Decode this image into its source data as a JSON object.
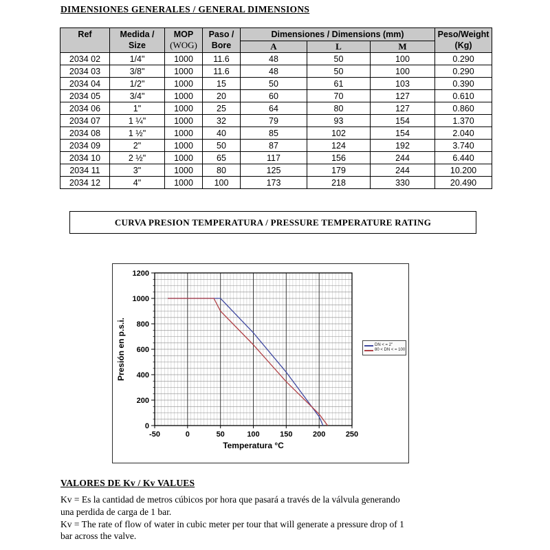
{
  "page": {
    "title": "DIMENSIONES GENERALES / GENERAL DIMENSIONS"
  },
  "table": {
    "headers": {
      "ref": "Ref",
      "size": "Medida  /\nSize",
      "mop_line1": "MOP",
      "mop_line2": "(WOG)",
      "bore": "Paso /\nBore",
      "dimensions": "Dimensiones / Dimensions (mm)",
      "dim_a": "A",
      "dim_l": "L",
      "dim_m": "M",
      "weight": "Peso/Weight\n(Kg)"
    },
    "rows": [
      [
        "2034 02",
        "1/4\"",
        "1000",
        "11.6",
        "48",
        "50",
        "100",
        "0.290"
      ],
      [
        "2034 03",
        "3/8\"",
        "1000",
        "11.6",
        "48",
        "50",
        "100",
        "0.290"
      ],
      [
        "2034 04",
        "1/2\"",
        "1000",
        "15",
        "50",
        "61",
        "103",
        "0.390"
      ],
      [
        "2034 05",
        "3/4\"",
        "1000",
        "20",
        "60",
        "70",
        "127",
        "0.610"
      ],
      [
        "2034 06",
        "1\"",
        "1000",
        "25",
        "64",
        "80",
        "127",
        "0.860"
      ],
      [
        "2034 07",
        "1 ¼\"",
        "1000",
        "32",
        "79",
        "93",
        "154",
        "1.370"
      ],
      [
        "2034 08",
        "1 ½\"",
        "1000",
        "40",
        "85",
        "102",
        "154",
        "2.040"
      ],
      [
        "2034 09",
        "2\"",
        "1000",
        "50",
        "87",
        "124",
        "192",
        "3.740"
      ],
      [
        "2034 10",
        "2 ½\"",
        "1000",
        "65",
        "117",
        "156",
        "244",
        "6.440"
      ],
      [
        "2034 11",
        "3\"",
        "1000",
        "80",
        "125",
        "179",
        "244",
        "10.200"
      ],
      [
        "2034 12",
        "4\"",
        "1000",
        "100",
        "173",
        "218",
        "330",
        "20.490"
      ]
    ]
  },
  "section_title": "CURVA PRESION TEMPERATURA / PRESSURE TEMPERATURE RATING",
  "chart_data": {
    "type": "line",
    "title": "",
    "xlabel": "Temperatura °C",
    "ylabel": "Presión en p.s.i.",
    "xlim": [
      -50,
      250
    ],
    "ylim": [
      0,
      1200
    ],
    "x_ticks": [
      -50,
      0,
      50,
      100,
      150,
      200,
      250
    ],
    "y_ticks": [
      0,
      200,
      400,
      600,
      800,
      1000,
      1200
    ],
    "grid": "fine mesh: minor x every 5 °C, minor y every 50 psi, major x every 50 °C",
    "legend_position": "right",
    "series": [
      {
        "name": "DN < = 2\"",
        "color": "#3f48a0",
        "points": [
          [
            -30,
            1000
          ],
          [
            50,
            1000
          ],
          [
            100,
            730
          ],
          [
            150,
            420
          ],
          [
            200,
            70
          ],
          [
            206,
            0
          ]
        ]
      },
      {
        "name": "80 < DN < = 100",
        "color": "#b04045",
        "points": [
          [
            -30,
            1000
          ],
          [
            40,
            1000
          ],
          [
            50,
            900
          ],
          [
            100,
            635
          ],
          [
            150,
            345
          ],
          [
            200,
            90
          ],
          [
            213,
            0
          ]
        ]
      }
    ]
  },
  "kv": {
    "heading": "VALORES DE Kv /  Kv VALUES",
    "paragraph_es": "Kv = Es la cantidad de metros cúbicos por hora que pasará a través de la válvula generando\nuna perdida de carga de 1 bar.",
    "paragraph_en": "Kv =  The rate of flow of water in cubic meter per tour that will generate a pressure drop of 1\nbar across the valve."
  }
}
